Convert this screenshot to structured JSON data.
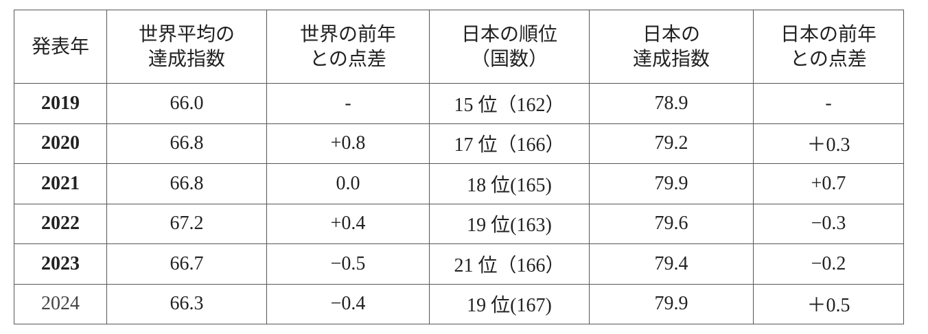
{
  "table": {
    "header": [
      [
        "発表年"
      ],
      [
        "世界平均の",
        "達成指数"
      ],
      [
        "世界の前年",
        "との点差"
      ],
      [
        "日本の順位",
        "（国数）"
      ],
      [
        "日本の",
        "達成指数"
      ],
      [
        "日本の前年",
        "との点差"
      ]
    ],
    "rows": [
      [
        "2019",
        "66.0",
        "-",
        "15 位（162）",
        "78.9",
        "-"
      ],
      [
        "2020",
        "66.8",
        "+0.8",
        "17 位（166）",
        "79.2",
        "＋0.3"
      ],
      [
        "2021",
        "66.8",
        "0.0",
        "18 位(165)",
        "79.9",
        "+0.7"
      ],
      [
        "2022",
        "67.2",
        "+0.4",
        "19 位(163)",
        "79.6",
        "−0.3"
      ],
      [
        "2023",
        "66.7",
        "−0.5",
        "21 位（166）",
        "79.4",
        "−0.2"
      ],
      [
        "2024",
        "66.3",
        "−0.4",
        "19 位(167)",
        "79.9",
        "＋0.5"
      ]
    ]
  }
}
